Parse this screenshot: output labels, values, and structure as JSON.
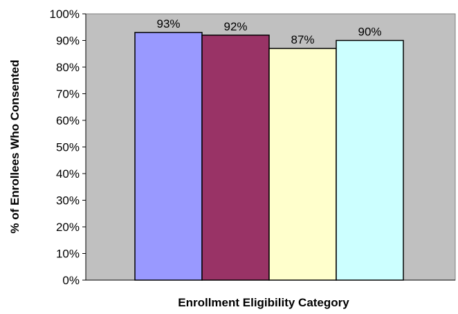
{
  "chart_data": {
    "type": "bar",
    "categories": [
      "",
      "",
      "",
      ""
    ],
    "values": [
      93,
      92,
      87,
      90
    ],
    "data_labels": [
      "93%",
      "92%",
      "87%",
      "90%"
    ],
    "xlabel": "Enrollment Eligibility Category",
    "ylabel": "% of Enrollees Who Consented",
    "ylim": [
      0,
      100
    ],
    "y_ticks": [
      0,
      10,
      20,
      30,
      40,
      50,
      60,
      70,
      80,
      90,
      100
    ],
    "y_tick_labels": [
      "0%",
      "10%",
      "20%",
      "30%",
      "40%",
      "50%",
      "60%",
      "70%",
      "80%",
      "90%",
      "100%"
    ],
    "grid": false,
    "legend": "none",
    "plot_background": "#c0c0c0",
    "bar_colors": [
      "#9999ff",
      "#993366",
      "#ffffcc",
      "#ccffff"
    ],
    "bar_outline": "#000000"
  }
}
